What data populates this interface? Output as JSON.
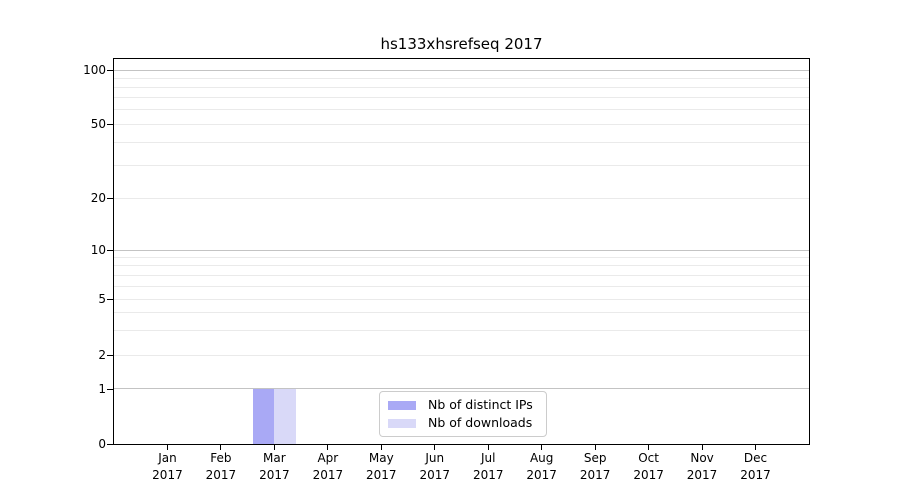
{
  "chart_data": {
    "type": "bar",
    "title": "hs133xhsrefseq 2017",
    "categories": [
      {
        "month": "Jan",
        "year": "2017"
      },
      {
        "month": "Feb",
        "year": "2017"
      },
      {
        "month": "Mar",
        "year": "2017"
      },
      {
        "month": "Apr",
        "year": "2017"
      },
      {
        "month": "May",
        "year": "2017"
      },
      {
        "month": "Jun",
        "year": "2017"
      },
      {
        "month": "Jul",
        "year": "2017"
      },
      {
        "month": "Aug",
        "year": "2017"
      },
      {
        "month": "Sep",
        "year": "2017"
      },
      {
        "month": "Oct",
        "year": "2017"
      },
      {
        "month": "Nov",
        "year": "2017"
      },
      {
        "month": "Dec",
        "year": "2017"
      }
    ],
    "series": [
      {
        "name": "Nb of distinct IPs",
        "color": "#a9a9f5",
        "values": [
          0,
          0,
          1,
          0,
          0,
          0,
          0,
          0,
          0,
          0,
          0,
          0
        ]
      },
      {
        "name": "Nb of downloads",
        "color": "#d9d9f8",
        "values": [
          0,
          0,
          1,
          0,
          0,
          0,
          0,
          0,
          0,
          0,
          0,
          0
        ]
      }
    ],
    "xlabel": "",
    "ylabel": "",
    "yscale": "symlog",
    "ylim": [
      0,
      100
    ],
    "yticks": [
      0,
      1,
      2,
      5,
      10,
      20,
      50,
      100
    ],
    "yticks_minor": [
      3,
      4,
      6,
      7,
      8,
      9,
      30,
      40,
      60,
      70,
      80,
      90
    ],
    "yticks_emphasized": [
      1,
      10,
      100
    ],
    "grid": "horizontal",
    "legend_position": "lower center",
    "colors": {
      "major_grid": "#c3c3c3",
      "minor_grid": "#eaeaea",
      "axis": "#000000",
      "background": "#ffffff"
    }
  }
}
